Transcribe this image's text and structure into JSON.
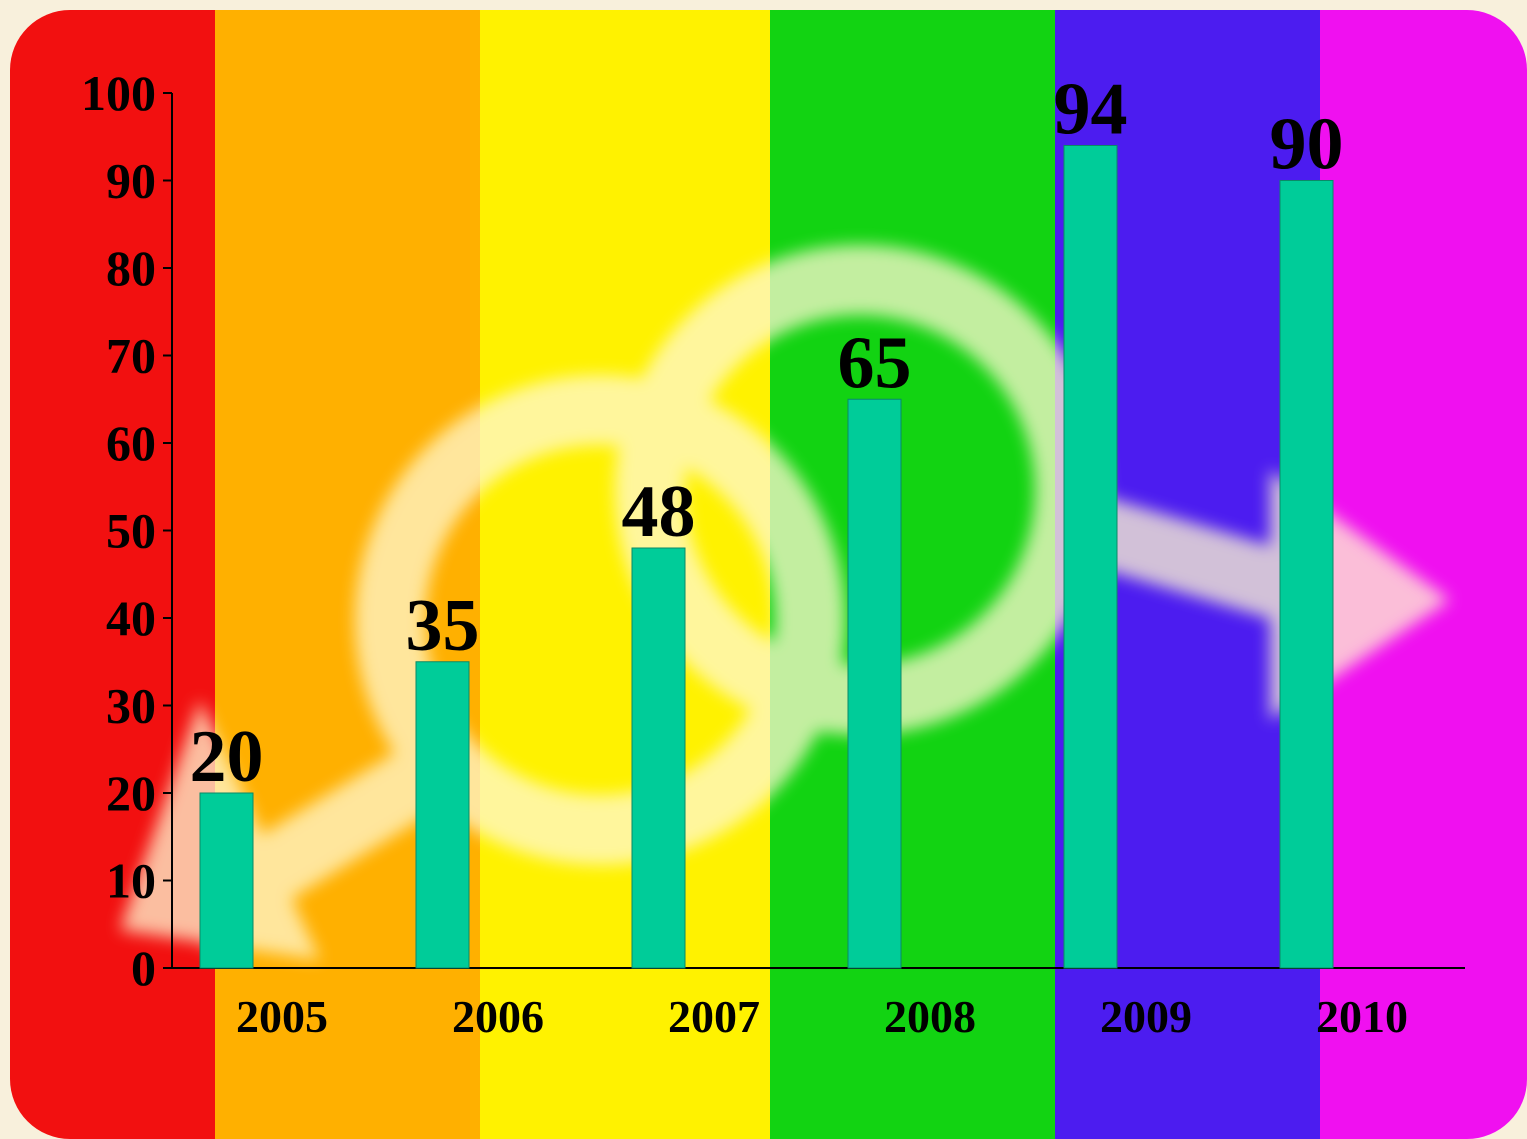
{
  "chart_data": {
    "type": "bar",
    "categories": [
      "2005",
      "2006",
      "2007",
      "2008",
      "2009",
      "2010"
    ],
    "values": [
      20,
      35,
      48,
      65,
      94,
      90
    ],
    "color": "#00cc99",
    "ylim": [
      0,
      100
    ],
    "yticks": [
      0,
      10,
      20,
      30,
      40,
      50,
      60,
      70,
      80,
      90,
      100
    ]
  }
}
